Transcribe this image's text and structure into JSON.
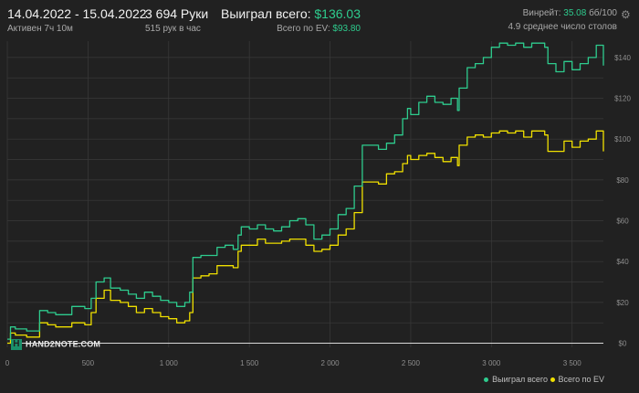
{
  "header": {
    "date_range": "14.04.2022 - 15.04.2022",
    "active": "Активен 7ч 10м",
    "hands": "3 694 Руки",
    "hands_per_hour": "515 рук в час",
    "won_label": "Выиграл всего:",
    "won_value": "$136.03",
    "ev_label": "Всего по EV:",
    "ev_value": "$93.80",
    "winrate_label": "Винрейт:",
    "winrate_value": "35.08",
    "winrate_unit": "бб/100",
    "tables": "4.9 среднее число столов"
  },
  "logo_text": "HAND2NOTE.COM",
  "icons": {
    "settings": "gear-icon",
    "logo": "hand2note-logo-icon"
  },
  "colors": {
    "won": "#2ecc8e",
    "ev": "#f0e000",
    "background": "#212121",
    "zero_line": "#d8d8d8",
    "grid": "#3a3a3a"
  },
  "chart_data": {
    "type": "line",
    "x_ticks": [
      "0",
      "500",
      "1 000",
      "1 500",
      "2 000",
      "2 500",
      "3 000",
      "3 500"
    ],
    "x_tick_values": [
      0,
      500,
      1000,
      1500,
      2000,
      2500,
      3000,
      3500
    ],
    "y_ticks": [
      "$0",
      "$20",
      "$40",
      "$60",
      "$80",
      "$100",
      "$120",
      "$140"
    ],
    "y_tick_values": [
      0,
      20,
      40,
      60,
      80,
      100,
      120,
      140
    ],
    "xlim": [
      0,
      3694
    ],
    "ylim": [
      -2,
      148
    ],
    "grid": true,
    "legend_position": "bottom-right",
    "series": [
      {
        "name": "Выиграл всего",
        "color": "#2ecc8e",
        "x": [
          0,
          20,
          50,
          120,
          200,
          250,
          300,
          400,
          480,
          520,
          550,
          600,
          640,
          700,
          750,
          800,
          850,
          900,
          950,
          1000,
          1050,
          1100,
          1130,
          1150,
          1200,
          1250,
          1300,
          1350,
          1400,
          1430,
          1450,
          1500,
          1550,
          1600,
          1650,
          1700,
          1750,
          1800,
          1850,
          1900,
          1950,
          2000,
          2050,
          2100,
          2150,
          2200,
          2250,
          2300,
          2350,
          2400,
          2450,
          2480,
          2500,
          2550,
          2600,
          2650,
          2700,
          2750,
          2790,
          2800,
          2850,
          2900,
          2950,
          3000,
          3050,
          3100,
          3150,
          3200,
          3250,
          3300,
          3330,
          3350,
          3400,
          3450,
          3500,
          3550,
          3600,
          3650,
          3694
        ],
        "y": [
          2,
          8,
          7,
          6,
          16,
          15,
          14,
          18,
          17,
          22,
          30,
          32,
          27,
          26,
          24,
          22,
          25,
          23,
          21,
          20,
          18,
          20,
          25,
          42,
          43,
          43,
          47,
          48,
          46,
          53,
          57,
          56,
          58,
          56,
          55,
          57,
          60,
          61,
          58,
          51,
          53,
          56,
          63,
          66,
          77,
          97,
          97,
          95,
          98,
          102,
          110,
          115,
          112,
          118,
          121,
          118,
          117,
          120,
          114,
          125,
          135,
          137,
          140,
          145,
          147,
          146,
          147,
          145,
          147,
          147,
          145,
          137,
          133,
          138,
          134,
          137,
          140,
          146,
          136
        ]
      },
      {
        "name": "Всего по EV",
        "color": "#f0e000",
        "x": [
          0,
          20,
          50,
          120,
          200,
          250,
          300,
          400,
          480,
          520,
          550,
          600,
          640,
          700,
          750,
          800,
          850,
          900,
          950,
          1000,
          1050,
          1100,
          1130,
          1150,
          1200,
          1250,
          1300,
          1350,
          1400,
          1430,
          1450,
          1500,
          1550,
          1600,
          1650,
          1700,
          1750,
          1800,
          1850,
          1900,
          1950,
          2000,
          2050,
          2100,
          2150,
          2200,
          2250,
          2300,
          2350,
          2400,
          2450,
          2480,
          2500,
          2550,
          2600,
          2650,
          2700,
          2750,
          2790,
          2800,
          2850,
          2900,
          2950,
          3000,
          3050,
          3100,
          3150,
          3200,
          3250,
          3300,
          3330,
          3350,
          3400,
          3450,
          3500,
          3550,
          3600,
          3650,
          3694
        ],
        "y": [
          0,
          5,
          4,
          3,
          10,
          9,
          8,
          10,
          9,
          15,
          22,
          26,
          21,
          20,
          18,
          15,
          17,
          15,
          13,
          12,
          10,
          11,
          15,
          32,
          33,
          34,
          38,
          38,
          37,
          45,
          48,
          48,
          51,
          49,
          49,
          50,
          51,
          51,
          48,
          45,
          46,
          48,
          53,
          56,
          64,
          79,
          79,
          78,
          83,
          84,
          88,
          92,
          90,
          92,
          93,
          91,
          89,
          91,
          87,
          97,
          101,
          102,
          101,
          103,
          104,
          103,
          104,
          101,
          104,
          104,
          102,
          94,
          94,
          99,
          96,
          99,
          100,
          104,
          94
        ]
      }
    ]
  }
}
